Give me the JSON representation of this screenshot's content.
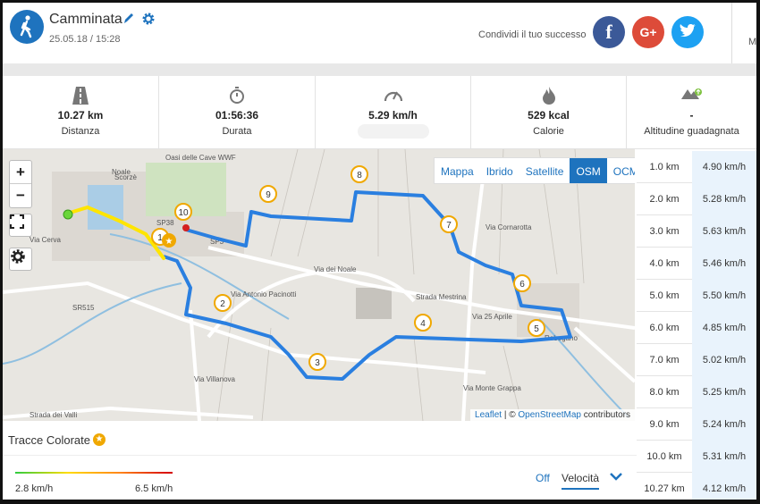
{
  "header": {
    "title": "Camminata",
    "datetime": "25.05.18 / 15:28",
    "share_label": "Condividi il tuo successo",
    "social": {
      "facebook": "f",
      "google": "G+",
      "twitter": "t"
    },
    "cut_text": "Mi"
  },
  "stats": [
    {
      "icon": "road-icon",
      "value": "10.27 km",
      "label": "Distanza"
    },
    {
      "icon": "stopwatch-icon",
      "value": "01:56:36",
      "label": "Durata"
    },
    {
      "icon": "speedometer-icon",
      "value": "5.29 km/h",
      "label": ""
    },
    {
      "icon": "flame-icon",
      "value": "529 kcal",
      "label": "Calorie"
    },
    {
      "icon": "elevation-icon",
      "value": "-",
      "label": "Altitudine guadagnata"
    }
  ],
  "map": {
    "layers": [
      "Mappa",
      "Ibrido",
      "Satellite",
      "OSM",
      "OCM"
    ],
    "active_layer": "OSM",
    "attribution": {
      "leaflet": "Leaflet",
      "sep": " | © ",
      "osm": "OpenStreetMap",
      "rest": " contributors"
    },
    "markers": [
      "1",
      "2",
      "3",
      "4",
      "5",
      "6",
      "7",
      "8",
      "9",
      "10"
    ],
    "place_labels": [
      "Noale",
      "Scorzè",
      "Oasi delle Cave WWF",
      "Robegano",
      "SR515",
      "SP38",
      "SP3",
      "Via dei Noale",
      "Strada Mestrina",
      "Via 25 Aprile",
      "Via Antonio Pacinotti",
      "Via Villanova",
      "Via Monte Grappa",
      "Via Cornarotta",
      "Strada dei Valli",
      "Via Cerva"
    ],
    "zoom_in": "+",
    "zoom_out": "−",
    "route_color": "#2a7fe0"
  },
  "km_table": [
    {
      "km": "1.0 km",
      "speed": "4.90 km/h"
    },
    {
      "km": "2.0 km",
      "speed": "5.28 km/h"
    },
    {
      "km": "3.0 km",
      "speed": "5.63 km/h"
    },
    {
      "km": "4.0 km",
      "speed": "5.46 km/h"
    },
    {
      "km": "5.0 km",
      "speed": "5.50 km/h"
    },
    {
      "km": "6.0 km",
      "speed": "4.85 km/h"
    },
    {
      "km": "7.0 km",
      "speed": "5.02 km/h"
    },
    {
      "km": "8.0 km",
      "speed": "5.25 km/h"
    },
    {
      "km": "9.0 km",
      "speed": "5.24 km/h"
    },
    {
      "km": "10.0 km",
      "speed": "5.31 km/h"
    },
    {
      "km": "10.27 km",
      "speed": "4.12 km/h"
    }
  ],
  "colored_tracks": {
    "title": "Tracce Colorate",
    "min_label": "2.8 km/h",
    "max_label": "6.5 km/h",
    "off_label": "Off",
    "speed_label": "Velocità"
  }
}
